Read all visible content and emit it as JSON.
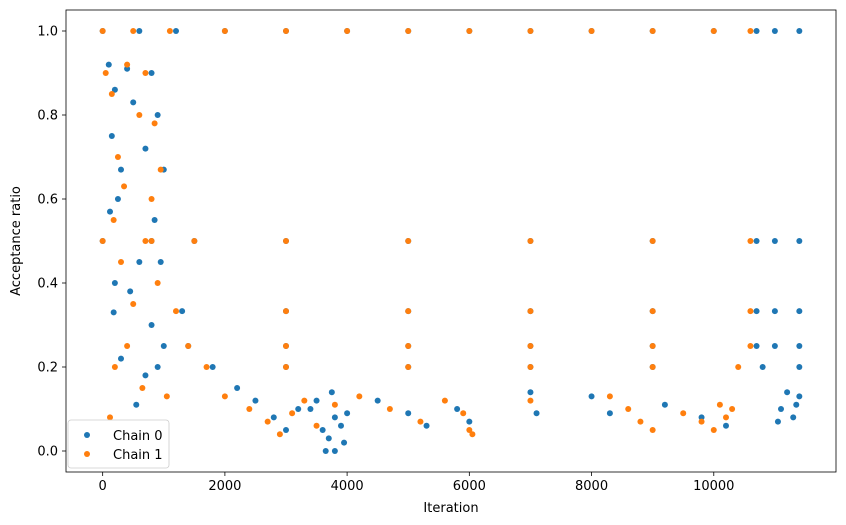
{
  "chart_data": {
    "type": "scatter",
    "title": "",
    "xlabel": "Iteration",
    "ylabel": "Acceptance ratio",
    "xlim": [
      -600,
      12000
    ],
    "ylim": [
      -0.05,
      1.05
    ],
    "xticks": [
      0,
      2000,
      4000,
      6000,
      8000,
      10000
    ],
    "xtick_labels": [
      "0",
      "2000",
      "4000",
      "6000",
      "8000",
      "10000"
    ],
    "yticks": [
      0.0,
      0.2,
      0.4,
      0.6,
      0.8,
      1.0
    ],
    "ytick_labels": [
      "0.0",
      "0.2",
      "0.4",
      "0.6",
      "0.8",
      "1.0"
    ],
    "grid": false,
    "legend_position": "bottom-left",
    "series": [
      {
        "name": "Chain 0",
        "color": "#1f77b4",
        "points": [
          [
            0,
            1.0
          ],
          [
            600,
            1.0
          ],
          [
            1200,
            1.0
          ],
          [
            2000,
            1.0
          ],
          [
            3000,
            1.0
          ],
          [
            4000,
            1.0
          ],
          [
            5000,
            1.0
          ],
          [
            6000,
            1.0
          ],
          [
            7000,
            1.0
          ],
          [
            8000,
            1.0
          ],
          [
            9000,
            1.0
          ],
          [
            10000,
            1.0
          ],
          [
            10700,
            1.0
          ],
          [
            11000,
            1.0
          ],
          [
            11400,
            1.0
          ],
          [
            0,
            0.5
          ],
          [
            800,
            0.5
          ],
          [
            1500,
            0.5
          ],
          [
            3000,
            0.5
          ],
          [
            5000,
            0.5
          ],
          [
            7000,
            0.5
          ],
          [
            9000,
            0.5
          ],
          [
            10700,
            0.5
          ],
          [
            11000,
            0.5
          ],
          [
            11400,
            0.5
          ],
          [
            1300,
            0.333
          ],
          [
            3000,
            0.333
          ],
          [
            5000,
            0.333
          ],
          [
            7000,
            0.333
          ],
          [
            9000,
            0.333
          ],
          [
            10700,
            0.333
          ],
          [
            11000,
            0.333
          ],
          [
            11400,
            0.333
          ],
          [
            1400,
            0.25
          ],
          [
            3000,
            0.25
          ],
          [
            5000,
            0.25
          ],
          [
            7000,
            0.25
          ],
          [
            9000,
            0.25
          ],
          [
            10700,
            0.25
          ],
          [
            11000,
            0.25
          ],
          [
            11400,
            0.25
          ],
          [
            1800,
            0.2
          ],
          [
            3000,
            0.2
          ],
          [
            5000,
            0.2
          ],
          [
            7000,
            0.2
          ],
          [
            9000,
            0.2
          ],
          [
            10800,
            0.2
          ],
          [
            11400,
            0.2
          ],
          [
            100,
            0.92
          ],
          [
            400,
            0.91
          ],
          [
            800,
            0.9
          ],
          [
            200,
            0.86
          ],
          [
            500,
            0.83
          ],
          [
            900,
            0.8
          ],
          [
            150,
            0.75
          ],
          [
            700,
            0.72
          ],
          [
            300,
            0.67
          ],
          [
            1000,
            0.67
          ],
          [
            250,
            0.6
          ],
          [
            850,
            0.55
          ],
          [
            120,
            0.57
          ],
          [
            600,
            0.45
          ],
          [
            950,
            0.45
          ],
          [
            200,
            0.4
          ],
          [
            450,
            0.38
          ],
          [
            180,
            0.33
          ],
          [
            800,
            0.3
          ],
          [
            1000,
            0.25
          ],
          [
            300,
            0.22
          ],
          [
            900,
            0.2
          ],
          [
            700,
            0.18
          ],
          [
            550,
            0.11
          ],
          [
            2200,
            0.15
          ],
          [
            2500,
            0.12
          ],
          [
            2800,
            0.08
          ],
          [
            3000,
            0.05
          ],
          [
            3200,
            0.1
          ],
          [
            3500,
            0.12
          ],
          [
            3600,
            0.05
          ],
          [
            3700,
            0.03
          ],
          [
            3800,
            0.08
          ],
          [
            3900,
            0.06
          ],
          [
            3650,
            0.0
          ],
          [
            3800,
            0.0
          ],
          [
            3950,
            0.02
          ],
          [
            3400,
            0.1
          ],
          [
            3750,
            0.14
          ],
          [
            4000,
            0.09
          ],
          [
            4500,
            0.12
          ],
          [
            5000,
            0.09
          ],
          [
            5300,
            0.06
          ],
          [
            5800,
            0.1
          ],
          [
            6000,
            0.07
          ],
          [
            7000,
            0.14
          ],
          [
            7100,
            0.09
          ],
          [
            8000,
            0.13
          ],
          [
            8300,
            0.09
          ],
          [
            9200,
            0.11
          ],
          [
            9800,
            0.08
          ],
          [
            10200,
            0.06
          ],
          [
            11100,
            0.1
          ],
          [
            11200,
            0.14
          ],
          [
            11300,
            0.08
          ],
          [
            11350,
            0.11
          ],
          [
            11050,
            0.07
          ],
          [
            11400,
            0.13
          ]
        ]
      },
      {
        "name": "Chain 1",
        "color": "#ff7f0e",
        "points": [
          [
            0,
            1.0
          ],
          [
            500,
            1.0
          ],
          [
            1100,
            1.0
          ],
          [
            2000,
            1.0
          ],
          [
            3000,
            1.0
          ],
          [
            4000,
            1.0
          ],
          [
            5000,
            1.0
          ],
          [
            6000,
            1.0
          ],
          [
            7000,
            1.0
          ],
          [
            8000,
            1.0
          ],
          [
            9000,
            1.0
          ],
          [
            10000,
            1.0
          ],
          [
            10600,
            1.0
          ],
          [
            0,
            0.5
          ],
          [
            800,
            0.5
          ],
          [
            1500,
            0.5
          ],
          [
            3000,
            0.5
          ],
          [
            5000,
            0.5
          ],
          [
            7000,
            0.5
          ],
          [
            9000,
            0.5
          ],
          [
            10600,
            0.5
          ],
          [
            1200,
            0.333
          ],
          [
            3000,
            0.333
          ],
          [
            5000,
            0.333
          ],
          [
            7000,
            0.333
          ],
          [
            9000,
            0.333
          ],
          [
            10600,
            0.333
          ],
          [
            1400,
            0.25
          ],
          [
            3000,
            0.25
          ],
          [
            5000,
            0.25
          ],
          [
            7000,
            0.25
          ],
          [
            9000,
            0.25
          ],
          [
            10600,
            0.25
          ],
          [
            1700,
            0.2
          ],
          [
            3000,
            0.2
          ],
          [
            5000,
            0.2
          ],
          [
            7000,
            0.2
          ],
          [
            9000,
            0.2
          ],
          [
            10400,
            0.2
          ],
          [
            50,
            0.9
          ],
          [
            400,
            0.92
          ],
          [
            700,
            0.9
          ],
          [
            150,
            0.85
          ],
          [
            600,
            0.8
          ],
          [
            850,
            0.78
          ],
          [
            250,
            0.7
          ],
          [
            950,
            0.67
          ],
          [
            350,
            0.63
          ],
          [
            800,
            0.6
          ],
          [
            180,
            0.55
          ],
          [
            700,
            0.5
          ],
          [
            300,
            0.45
          ],
          [
            900,
            0.4
          ],
          [
            500,
            0.35
          ],
          [
            400,
            0.25
          ],
          [
            200,
            0.2
          ],
          [
            650,
            0.15
          ],
          [
            120,
            0.08
          ],
          [
            1050,
            0.13
          ],
          [
            2000,
            0.13
          ],
          [
            2400,
            0.1
          ],
          [
            2700,
            0.07
          ],
          [
            2900,
            0.04
          ],
          [
            3100,
            0.09
          ],
          [
            3300,
            0.12
          ],
          [
            3500,
            0.06
          ],
          [
            3800,
            0.11
          ],
          [
            4200,
            0.13
          ],
          [
            4700,
            0.1
          ],
          [
            5200,
            0.07
          ],
          [
            5600,
            0.12
          ],
          [
            5900,
            0.09
          ],
          [
            6000,
            0.05
          ],
          [
            6050,
            0.04
          ],
          [
            7000,
            0.12
          ],
          [
            8300,
            0.13
          ],
          [
            8600,
            0.1
          ],
          [
            8800,
            0.07
          ],
          [
            9000,
            0.05
          ],
          [
            9500,
            0.09
          ],
          [
            9800,
            0.07
          ],
          [
            10000,
            0.05
          ],
          [
            10200,
            0.08
          ],
          [
            10100,
            0.11
          ],
          [
            10300,
            0.1
          ]
        ]
      }
    ]
  }
}
